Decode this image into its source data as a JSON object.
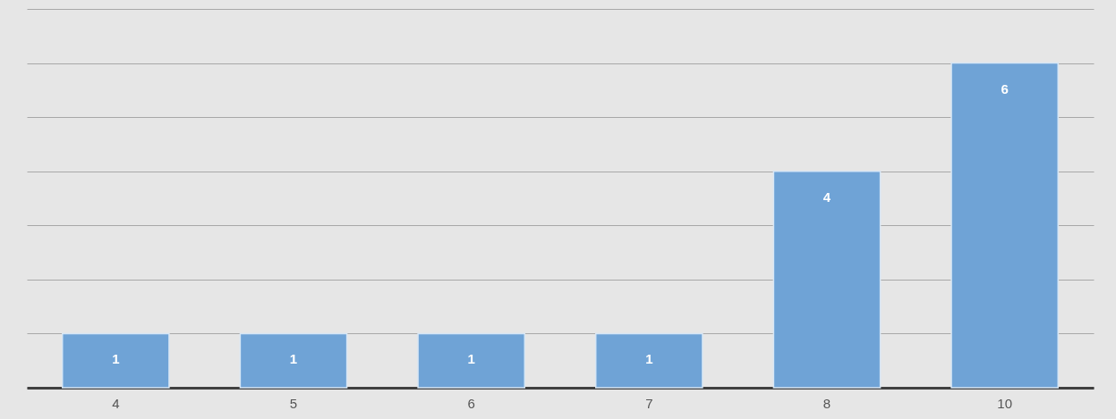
{
  "chart_data": {
    "type": "bar",
    "categories": [
      "4",
      "5",
      "6",
      "7",
      "8",
      "10"
    ],
    "values": [
      1,
      1,
      1,
      1,
      4,
      6
    ],
    "color": "#6fa3d6",
    "data_labels": true,
    "ylim": [
      0,
      7
    ],
    "yticks": [
      {
        "value": 0,
        "label": null
      },
      {
        "value": 1,
        "label": null
      },
      {
        "value": 2,
        "label": null
      },
      {
        "value": 3,
        "label": null
      },
      {
        "value": 4,
        "label": null
      },
      {
        "value": 5,
        "label": null
      },
      {
        "value": 6,
        "label": null
      },
      {
        "value": 7,
        "label": null
      }
    ],
    "grid": "y",
    "tick_labels": "x"
  }
}
